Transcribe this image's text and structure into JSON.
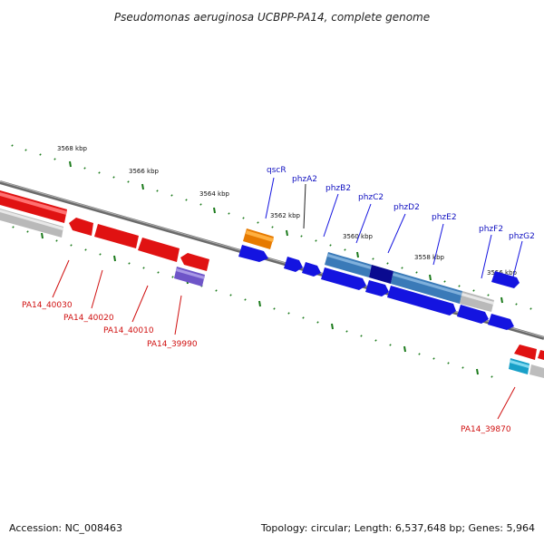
{
  "title": "Pseudomonas aeruginosa UCBPP-PA14, complete genome",
  "accession": "Accession: NC_008463",
  "topology": "Topology: circular; Length: 6,537,648 bp; Genes: 5,964",
  "scale_labels": [
    "3568 kbp",
    "3566 kbp",
    "3564 kbp",
    "3562 kbp",
    "3560 kbp",
    "3558 kbp",
    "3556 kbp"
  ],
  "gene_labels_forward": [
    "qscR",
    "phzA2",
    "phzB2",
    "phzC2",
    "phzD2",
    "phzE2",
    "phzF2",
    "phzG2"
  ],
  "gene_labels_reverse": [
    "PA14_40030",
    "PA14_40020",
    "PA14_40010",
    "PA14_39990",
    "PA14_39870"
  ],
  "colors": {
    "forward_label": "#1010c0",
    "reverse_label": "#d01010",
    "forward_gene": "#1414e0",
    "reverse_gene": "#e01010",
    "scale": "#1a7a1a",
    "backbone": "#707070"
  }
}
